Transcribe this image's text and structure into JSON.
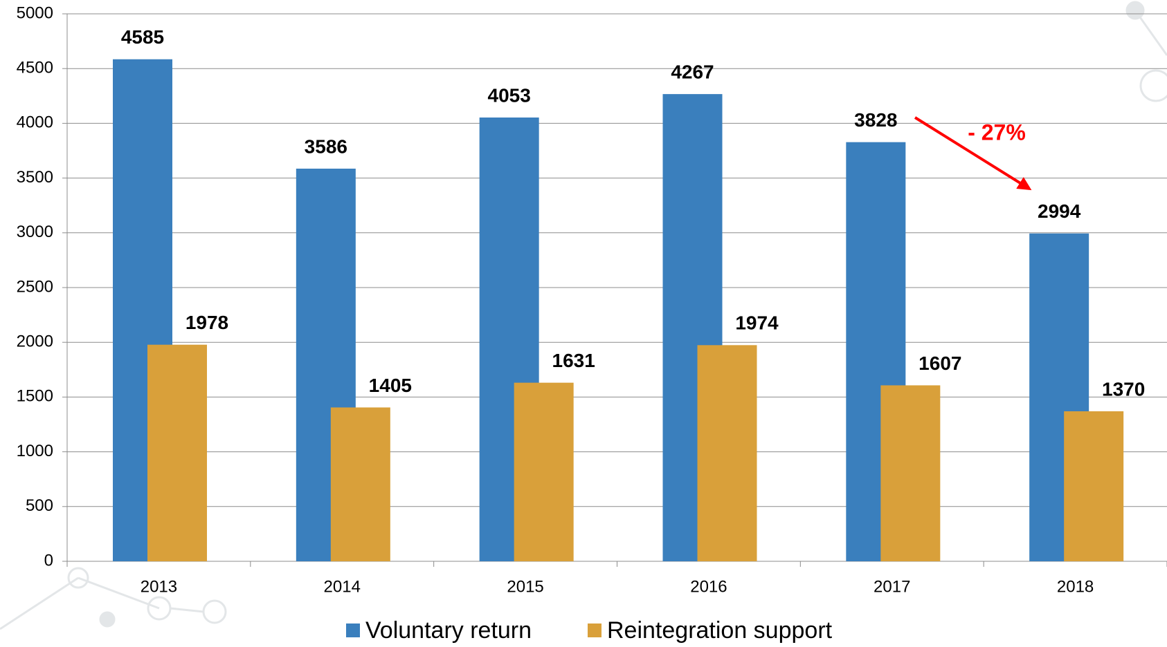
{
  "chart_data": {
    "type": "bar",
    "categories": [
      "2013",
      "2014",
      "2015",
      "2016",
      "2017",
      "2018"
    ],
    "series": [
      {
        "name": "Voluntary return",
        "color": "#3a7fbd",
        "values": [
          4585,
          3586,
          4053,
          4267,
          3828,
          2994
        ]
      },
      {
        "name": "Reintegration support",
        "color": "#d9a03a",
        "values": [
          1978,
          1405,
          1631,
          1974,
          1607,
          1370
        ]
      }
    ],
    "ylim": [
      0,
      5000
    ],
    "yticks": [
      0,
      500,
      1000,
      1500,
      2000,
      2500,
      3000,
      3500,
      4000,
      4500,
      5000
    ],
    "grid": true,
    "legend": "bottom",
    "annotation": "- 27%"
  }
}
